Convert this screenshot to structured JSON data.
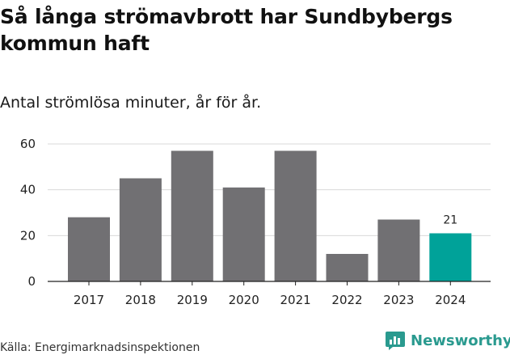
{
  "title": "Så långa strömavbrott har Sundbybergs kommun haft",
  "subtitle": "Antal strömlösa minuter, år för år.",
  "source": "Källa: Energimarknadsinspektionen",
  "brand": {
    "name": "Newsworthy",
    "icon": "newsworthy-logo-icon",
    "color": "#2a9a8f"
  },
  "colors": {
    "bar": "#717073",
    "highlight": "#00a299",
    "grid": "#d9d9d9",
    "axis": "#222222"
  },
  "chart_data": {
    "type": "bar",
    "title": "Så långa strömavbrott har Sundbybergs kommun haft",
    "subtitle": "Antal strömlösa minuter, år för år.",
    "xlabel": "",
    "ylabel": "",
    "categories": [
      "2017",
      "2018",
      "2019",
      "2020",
      "2021",
      "2022",
      "2023",
      "2024"
    ],
    "values": [
      28,
      45,
      57,
      41,
      57,
      12,
      27,
      21
    ],
    "highlight_index": 7,
    "data_labels": [
      {
        "index": 7,
        "text": "21"
      }
    ],
    "ylim": [
      0,
      60
    ],
    "yticks": [
      0,
      20,
      40,
      60
    ],
    "grid": true
  }
}
